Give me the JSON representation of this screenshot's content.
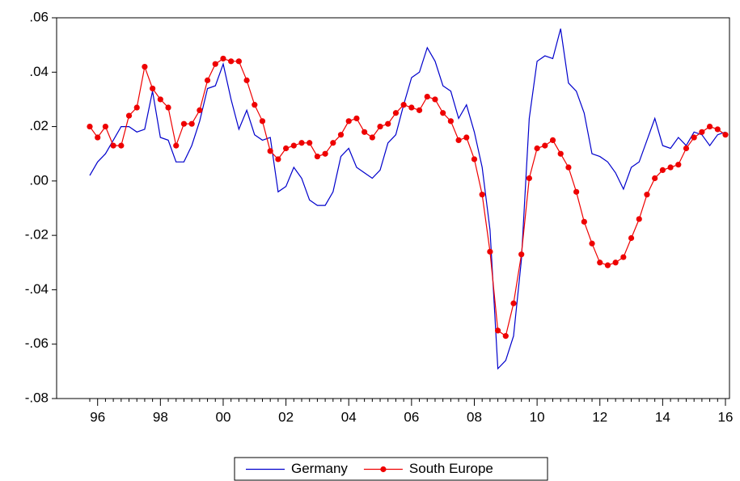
{
  "chart_data": {
    "type": "line",
    "categories": [
      null,
      "96",
      null,
      null,
      null,
      null,
      null,
      null,
      null,
      "98",
      null,
      null,
      null,
      null,
      null,
      null,
      null,
      "00",
      null,
      null,
      null,
      null,
      null,
      null,
      null,
      "02",
      null,
      null,
      null,
      null,
      null,
      null,
      null,
      "04",
      null,
      null,
      null,
      null,
      null,
      null,
      null,
      "06",
      null,
      null,
      null,
      null,
      null,
      null,
      null,
      "08",
      null,
      null,
      null,
      null,
      null,
      null,
      null,
      "10",
      null,
      null,
      null,
      null,
      null,
      null,
      null,
      "12",
      null,
      null,
      null,
      null,
      null,
      null,
      null,
      "14",
      null,
      null,
      null,
      null,
      null,
      null,
      null,
      "16"
    ],
    "series": [
      {
        "name": "Germany",
        "color": "#0000cc",
        "marker": false,
        "values": [
          0.002,
          0.007,
          0.01,
          0.015,
          0.02,
          0.02,
          0.018,
          0.019,
          0.033,
          0.016,
          0.015,
          0.007,
          0.007,
          0.013,
          0.022,
          0.034,
          0.035,
          0.043,
          0.03,
          0.019,
          0.026,
          0.017,
          0.015,
          0.016,
          -0.004,
          -0.002,
          0.005,
          0.001,
          -0.007,
          -0.009,
          -0.009,
          -0.004,
          0.009,
          0.012,
          0.005,
          0.003,
          0.001,
          0.004,
          0.014,
          0.017,
          0.028,
          0.038,
          0.04,
          0.049,
          0.044,
          0.035,
          0.033,
          0.023,
          0.028,
          0.018,
          0.005,
          -0.018,
          -0.069,
          -0.066,
          -0.057,
          -0.029,
          0.023,
          0.044,
          0.046,
          0.045,
          0.056,
          0.036,
          0.033,
          0.025,
          0.01,
          0.009,
          0.007,
          0.003,
          -0.003,
          0.005,
          0.007,
          0.015,
          0.023,
          0.013,
          0.012,
          0.016,
          0.013,
          0.018,
          0.017,
          0.013,
          0.017,
          0.018
        ]
      },
      {
        "name": "South Europe",
        "color": "#ee0000",
        "marker": true,
        "values": [
          0.02,
          0.016,
          0.02,
          0.013,
          0.013,
          0.024,
          0.027,
          0.042,
          0.034,
          0.03,
          0.027,
          0.013,
          0.021,
          0.021,
          0.026,
          0.037,
          0.043,
          0.045,
          0.044,
          0.044,
          0.037,
          0.028,
          0.022,
          0.011,
          0.008,
          0.012,
          0.013,
          0.014,
          0.014,
          0.009,
          0.01,
          0.014,
          0.017,
          0.022,
          0.023,
          0.018,
          0.016,
          0.02,
          0.021,
          0.025,
          0.028,
          0.027,
          0.026,
          0.031,
          0.03,
          0.025,
          0.022,
          0.015,
          0.016,
          0.008,
          -0.005,
          -0.026,
          -0.055,
          -0.057,
          -0.045,
          -0.027,
          0.001,
          0.012,
          0.013,
          0.015,
          0.01,
          0.005,
          -0.004,
          -0.015,
          -0.023,
          -0.03,
          -0.031,
          -0.03,
          -0.028,
          -0.021,
          -0.014,
          -0.005,
          0.001,
          0.004,
          0.005,
          0.006,
          0.012,
          0.016,
          0.018,
          0.02,
          0.019,
          0.017
        ]
      }
    ],
    "ylim": [
      -0.08,
      0.06
    ],
    "yticks": [
      {
        "value": -0.08,
        "label": "-.08"
      },
      {
        "value": -0.06,
        "label": "-.06"
      },
      {
        "value": -0.04,
        "label": "-.04"
      },
      {
        "value": -0.02,
        "label": "-.02"
      },
      {
        "value": 0,
        "label": ".00"
      },
      {
        "value": 0.02,
        "label": ".02"
      },
      {
        "value": 0.04,
        "label": ".04"
      },
      {
        "value": 0.06,
        "label": ".06"
      }
    ],
    "grid": false,
    "legend": "bottom"
  }
}
